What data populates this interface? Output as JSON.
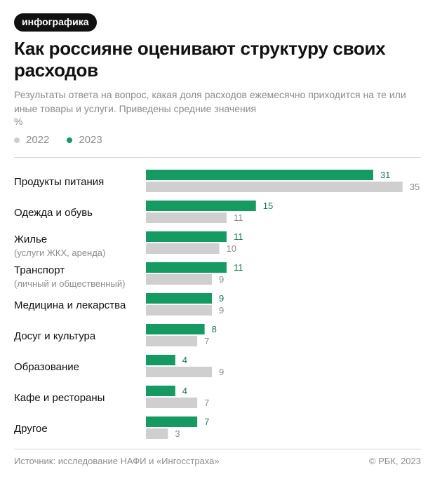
{
  "badge": "инфографика",
  "title": "Как россияне оценивают структуру своих расходов",
  "subtitle": "Результаты ответа на вопрос, какая доля расходов ежемесячно приходится на те или иные товары и услуги. Приведены средние значения",
  "unit": "%",
  "source": "Источник: исследование НАФИ и «Ингосстраха»",
  "copyright": "© РБК, 2023",
  "colors": {
    "green": "#159a62",
    "gray": "#cfcfcf",
    "green_text": "#137a4e",
    "gray_text": "#8c8c8c"
  },
  "chart_data": {
    "type": "bar",
    "orientation": "horizontal",
    "categories": [
      "Продукты питания",
      "Одежда и обувь",
      "Жилье",
      "Транспорт",
      "Медицина и лекарства",
      "Досуг и культура",
      "Образование",
      "Кафе и рестораны",
      "Другое"
    ],
    "category_notes": [
      "",
      "",
      "(услуги ЖКХ, аренда)",
      "(личный и общественный)",
      "",
      "",
      "",
      "",
      ""
    ],
    "series": [
      {
        "name": "2023",
        "color": "#159a62",
        "values": [
          31,
          15,
          11,
          11,
          9,
          8,
          4,
          4,
          7
        ]
      },
      {
        "name": "2022",
        "color": "#cfcfcf",
        "values": [
          35,
          11,
          10,
          9,
          9,
          7,
          9,
          7,
          3
        ]
      }
    ],
    "legend": [
      "2022",
      "2023"
    ],
    "xlim": [
      0,
      35
    ]
  }
}
